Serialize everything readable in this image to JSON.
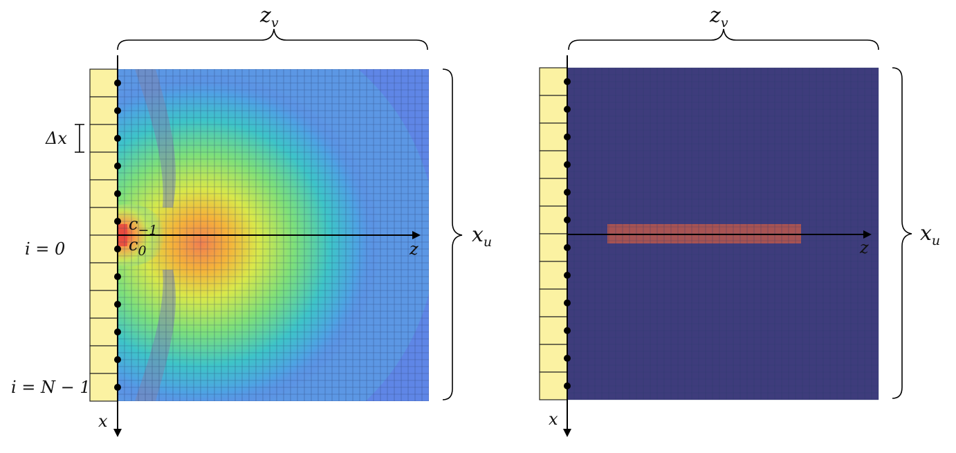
{
  "left_panel": {
    "brace_top_label": "z",
    "brace_top_sub": "v",
    "brace_right_label": "x",
    "brace_right_sub": "u",
    "axis_z_label": "z",
    "axis_x_label": "x",
    "dx_label": "Δx",
    "i0_label": "i = 0",
    "iN_label": "i = N − 1",
    "c_minus1_label": "c",
    "c_minus1_sub": "−1",
    "c0_label": "c",
    "c0_sub": "0",
    "element_count": 12
  },
  "right_panel": {
    "brace_top_label": "z",
    "brace_top_sub": "v",
    "brace_right_label": "x",
    "brace_right_sub": "u",
    "axis_z_label": "z",
    "axis_x_label": "x",
    "element_count": 12
  },
  "colors": {
    "array_fill": "#fbf2a2",
    "left_background": "#5f86e6",
    "right_background": "#3e3c7c",
    "right_target": "#b2554f",
    "grid_line": "#2a3a6a"
  }
}
